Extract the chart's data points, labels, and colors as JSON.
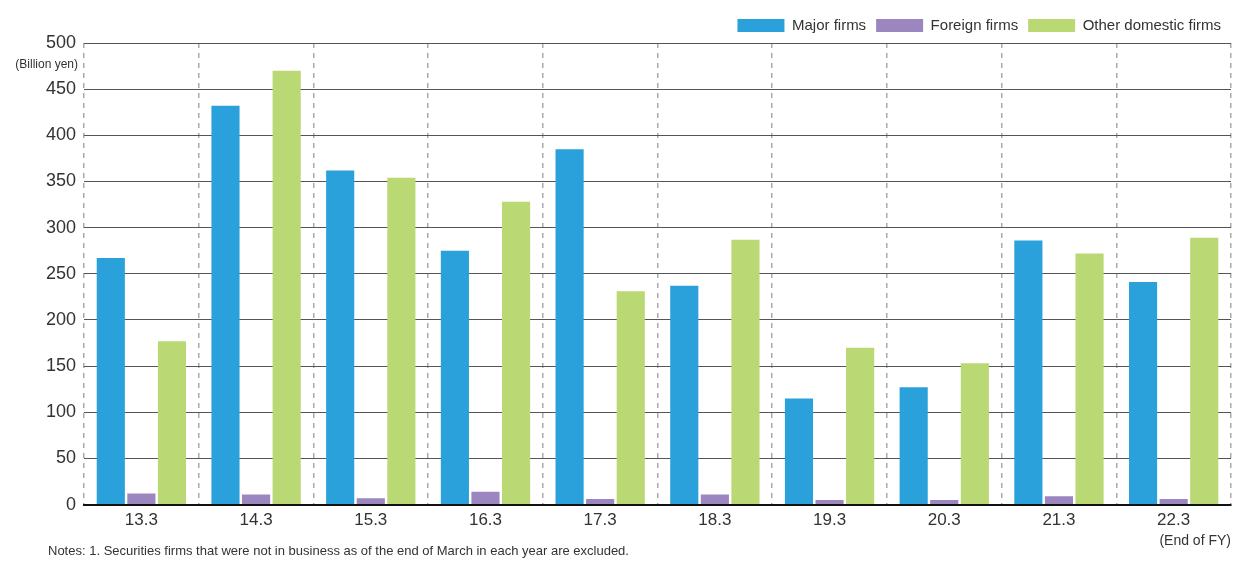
{
  "chart_data": {
    "type": "bar",
    "categories": [
      "13.3",
      "14.3",
      "15.3",
      "16.3",
      "17.3",
      "18.3",
      "19.3",
      "20.3",
      "21.3",
      "22.3"
    ],
    "series": [
      {
        "name": "Major firms",
        "color": "#2aa1db",
        "values": [
          267,
          432,
          362,
          275,
          385,
          237,
          115,
          127,
          286,
          241
        ]
      },
      {
        "name": "Foreign firms",
        "color": "#9b86c0",
        "values": [
          12,
          11,
          7,
          14,
          6,
          11,
          5,
          5,
          9,
          6
        ]
      },
      {
        "name": "Other domestic firms",
        "color": "#bad873",
        "values": [
          177,
          470,
          354,
          328,
          231,
          287,
          170,
          153,
          272,
          289
        ]
      }
    ],
    "ylabel": "(Billion yen)",
    "xlabel": "(End of FY)",
    "ylim": [
      0,
      500
    ],
    "yticks": [
      0,
      50,
      100,
      150,
      200,
      250,
      300,
      350,
      400,
      450,
      500
    ],
    "grid": true,
    "legend": "top right",
    "annotations": [
      "Notes: 1. Securities firms that were not in business as of the end of March in each year are excluded."
    ]
  }
}
